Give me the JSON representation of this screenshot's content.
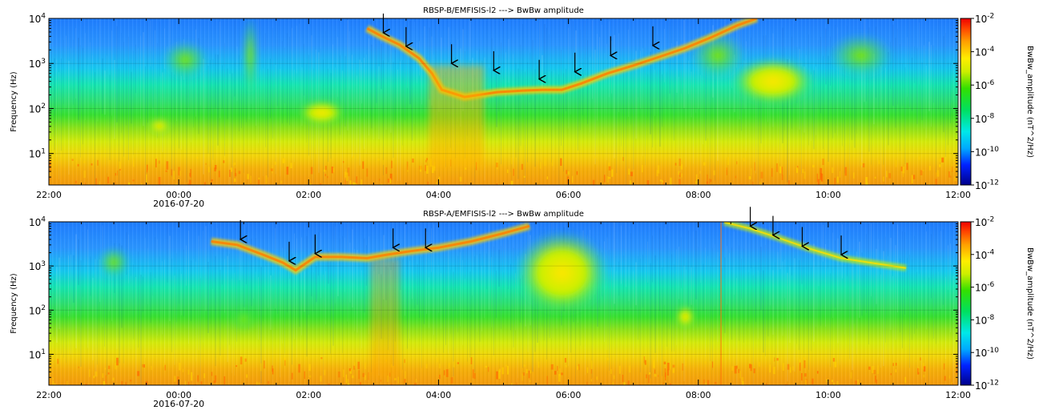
{
  "chart_data": [
    {
      "type": "heatmap",
      "title": "RBSP-B/EMFISIS-l2  ---> BwBw amplitude",
      "ylabel": "Frequency (Hz)",
      "yscale": "log",
      "ylim": [
        2,
        10000
      ],
      "yticks": [
        {
          "exp": "1",
          "value": 10
        },
        {
          "exp": "2",
          "value": 100
        },
        {
          "exp": "3",
          "value": 1000
        },
        {
          "exp": "4",
          "value": 10000
        }
      ],
      "x_hours": [
        -2,
        12
      ],
      "xticks": [
        {
          "label": "22:00",
          "hour": -2
        },
        {
          "label": "00:00",
          "hour": 0
        },
        {
          "label": "02:00",
          "hour": 2
        },
        {
          "label": "04:00",
          "hour": 4
        },
        {
          "label": "06:00",
          "hour": 6
        },
        {
          "label": "08:00",
          "hour": 8
        },
        {
          "label": "10:00",
          "hour": 10
        },
        {
          "label": "12:00",
          "hour": 12
        }
      ],
      "date_label": "2016-07-20",
      "colorbar": {
        "label": "BwBw_amplitude (nT^2/Hz)",
        "scale": "log",
        "range": [
          1e-12,
          0.01
        ],
        "ticks": [
          {
            "exp": "-2",
            "value": 0.01
          },
          {
            "exp": "-4",
            "value": 0.0001
          },
          {
            "exp": "-6",
            "value": 1e-06
          },
          {
            "exp": "-8",
            "value": 1e-08
          },
          {
            "exp": "-10",
            "value": 1e-10
          },
          {
            "exp": "-12",
            "value": 1e-12
          }
        ]
      },
      "arrows": [
        {
          "hour": 3.15,
          "freq": 4800
        },
        {
          "hour": 3.5,
          "freq": 2400
        },
        {
          "hour": 4.2,
          "freq": 1000
        },
        {
          "hour": 4.85,
          "freq": 700
        },
        {
          "hour": 5.55,
          "freq": 450
        },
        {
          "hour": 6.1,
          "freq": 650
        },
        {
          "hour": 6.65,
          "freq": 1500
        },
        {
          "hour": 7.3,
          "freq": 2500
        }
      ]
    },
    {
      "type": "heatmap",
      "title": "RBSP-A/EMFISIS-l2  ---> BwBw amplitude",
      "ylabel": "Frequency (Hz)",
      "yscale": "log",
      "ylim": [
        2,
        10000
      ],
      "yticks": [
        {
          "exp": "1",
          "value": 10
        },
        {
          "exp": "2",
          "value": 100
        },
        {
          "exp": "3",
          "value": 1000
        },
        {
          "exp": "4",
          "value": 10000
        }
      ],
      "x_hours": [
        -2,
        12
      ],
      "xticks": [
        {
          "label": "22:00",
          "hour": -2
        },
        {
          "label": "00:00",
          "hour": 0
        },
        {
          "label": "02:00",
          "hour": 2
        },
        {
          "label": "04:00",
          "hour": 4
        },
        {
          "label": "06:00",
          "hour": 6
        },
        {
          "label": "08:00",
          "hour": 8
        },
        {
          "label": "10:00",
          "hour": 10
        },
        {
          "label": "12:00",
          "hour": 12
        }
      ],
      "date_label": "2016-07-20",
      "colorbar": {
        "label": "BwBw_amplitude (nT^2/Hz)",
        "scale": "log",
        "range": [
          1e-12,
          0.01
        ],
        "ticks": [
          {
            "exp": "-2",
            "value": 0.01
          },
          {
            "exp": "-4",
            "value": 0.0001
          },
          {
            "exp": "-6",
            "value": 1e-06
          },
          {
            "exp": "-8",
            "value": 1e-08
          },
          {
            "exp": "-10",
            "value": 1e-10
          },
          {
            "exp": "-12",
            "value": 1e-12
          }
        ]
      },
      "arrows": [
        {
          "hour": 0.95,
          "freq": 4000
        },
        {
          "hour": 1.7,
          "freq": 1300
        },
        {
          "hour": 2.1,
          "freq": 1900
        },
        {
          "hour": 3.3,
          "freq": 2600
        },
        {
          "hour": 3.8,
          "freq": 2600
        },
        {
          "hour": 8.8,
          "freq": 8000
        },
        {
          "hour": 9.15,
          "freq": 5000
        },
        {
          "hour": 9.6,
          "freq": 2800
        },
        {
          "hour": 10.2,
          "freq": 1800
        }
      ]
    }
  ]
}
